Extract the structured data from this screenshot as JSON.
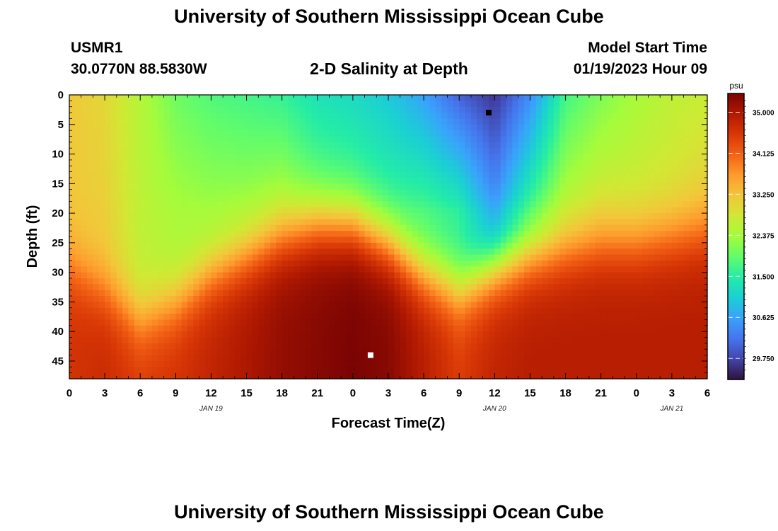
{
  "header": {
    "title": "University of Southern Mississippi Ocean Cube",
    "station": "USMR1",
    "coords": "30.0770N  88.5830W",
    "plot_title": "2-D Salinity at Depth",
    "model_label": "Model Start Time",
    "model_time": "01/19/2023 Hour 09"
  },
  "footer": {
    "title": "University of Southern Mississippi Ocean Cube"
  },
  "colorbar": {
    "unit": "psu",
    "ticks": [
      "35.000",
      "34.125",
      "33.250",
      "32.375",
      "31.500",
      "30.625",
      "29.750"
    ],
    "tick_values": [
      35.0,
      34.125,
      33.25,
      32.375,
      31.5,
      30.625,
      29.75
    ],
    "range": [
      29.3,
      35.4
    ],
    "colors": [
      "#30123b",
      "#4145ab",
      "#4675ed",
      "#39a2fc",
      "#1bcfd4",
      "#24eca6",
      "#61fc6c",
      "#a4fc3b",
      "#d1e834",
      "#f3c63a",
      "#fe9b2d",
      "#f36315",
      "#d93806",
      "#b11901",
      "#7a0403"
    ]
  },
  "chart_data": {
    "type": "heatmap",
    "title": "2-D Salinity at Depth",
    "xlabel": "Forecast Time(Z)",
    "ylabel": "Depth (ft)",
    "x_tick_labels": [
      "0",
      "3",
      "6",
      "9",
      "12",
      "15",
      "18",
      "21",
      "0",
      "3",
      "6",
      "9",
      "12",
      "15",
      "18",
      "21",
      "0",
      "3",
      "6"
    ],
    "x_range_hours": [
      0,
      54
    ],
    "date_labels": [
      {
        "hour": 12,
        "label": "JAN 19"
      },
      {
        "hour": 36,
        "label": "JAN 20"
      },
      {
        "hour": 51,
        "label": "JAN 21"
      }
    ],
    "y_tick_labels": [
      "0",
      "5",
      "10",
      "15",
      "20",
      "25",
      "30",
      "35",
      "40",
      "45"
    ],
    "y_range": [
      0,
      48
    ],
    "value_units": "psu",
    "value_range": [
      29.3,
      35.4
    ],
    "columns": [
      {
        "hour": 0,
        "surface": 33.2,
        "shallow": 33.2,
        "deep": 34.6,
        "thermocline": 29
      },
      {
        "hour": 3,
        "surface": 33.0,
        "shallow": 33.1,
        "deep": 34.7,
        "thermocline": 33
      },
      {
        "hour": 6,
        "surface": 32.5,
        "shallow": 32.6,
        "deep": 34.5,
        "thermocline": 38
      },
      {
        "hour": 9,
        "surface": 32.0,
        "shallow": 32.4,
        "deep": 34.6,
        "thermocline": 35
      },
      {
        "hour": 12,
        "surface": 31.8,
        "shallow": 32.3,
        "deep": 34.8,
        "thermocline": 30
      },
      {
        "hour": 15,
        "surface": 31.7,
        "shallow": 32.3,
        "deep": 35.0,
        "thermocline": 27
      },
      {
        "hour": 18,
        "surface": 31.6,
        "shallow": 32.4,
        "deep": 35.2,
        "thermocline": 24
      },
      {
        "hour": 21,
        "surface": 31.3,
        "shallow": 32.0,
        "deep": 35.3,
        "thermocline": 22
      },
      {
        "hour": 24,
        "surface": 31.2,
        "shallow": 31.8,
        "deep": 35.4,
        "thermocline": 22
      },
      {
        "hour": 27,
        "surface": 31.0,
        "shallow": 31.6,
        "deep": 35.3,
        "thermocline": 25
      },
      {
        "hour": 30,
        "surface": 30.6,
        "shallow": 31.7,
        "deep": 34.9,
        "thermocline": 30
      },
      {
        "hour": 33,
        "surface": 30.0,
        "shallow": 31.5,
        "deep": 34.5,
        "thermocline": 33
      },
      {
        "hour": 36,
        "surface": 29.6,
        "shallow": 30.5,
        "deep": 34.8,
        "thermocline": 29
      },
      {
        "hour": 39,
        "surface": 30.4,
        "shallow": 31.6,
        "deep": 34.9,
        "thermocline": 27
      },
      {
        "hour": 42,
        "surface": 31.7,
        "shallow": 32.5,
        "deep": 34.9,
        "thermocline": 26
      },
      {
        "hour": 45,
        "surface": 32.1,
        "shallow": 32.8,
        "deep": 34.9,
        "thermocline": 25
      },
      {
        "hour": 48,
        "surface": 32.4,
        "shallow": 32.8,
        "deep": 34.9,
        "thermocline": 25
      },
      {
        "hour": 51,
        "surface": 32.6,
        "shallow": 32.9,
        "deep": 34.9,
        "thermocline": 24
      },
      {
        "hour": 54,
        "surface": 32.7,
        "shallow": 33.1,
        "deep": 34.9,
        "thermocline": 23
      }
    ],
    "markers": [
      {
        "type": "min",
        "hour": 35.5,
        "depth": 3,
        "color": "#000000"
      },
      {
        "type": "max",
        "hour": 25.5,
        "depth": 44,
        "color": "#ffffff"
      }
    ]
  }
}
